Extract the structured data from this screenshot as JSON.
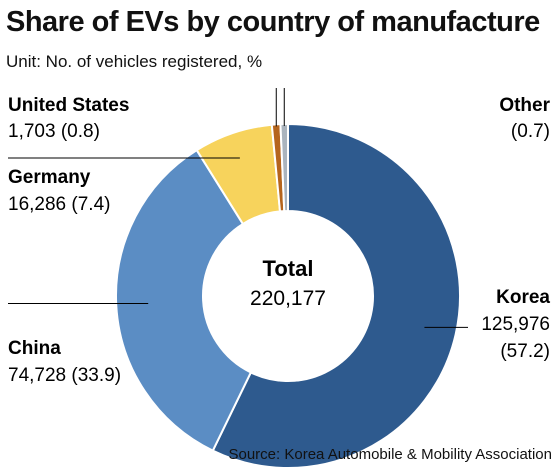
{
  "header": {
    "title": "Share of EVs by country of manufacture",
    "unit": "Unit: No. of vehicles registered, %"
  },
  "source": "Source: Korea Automobile & Mobility Association",
  "center": {
    "label": "Total",
    "value": "220,177"
  },
  "chart_data": {
    "type": "pie",
    "title": "Share of EVs by country of manufacture",
    "total": 220177,
    "slices": [
      {
        "name": "Korea",
        "value": 125976,
        "percent": 57.2,
        "value_text": "125,976",
        "pct_text": "(57.2)",
        "color": "#2e5a8e"
      },
      {
        "name": "China",
        "value": 74728,
        "percent": 33.9,
        "value_text": "74,728 (33.9)",
        "color": "#5b8dc4"
      },
      {
        "name": "Germany",
        "value": 16286,
        "percent": 7.4,
        "value_text": "16,286 (7.4)",
        "color": "#f7d35c"
      },
      {
        "name": "United States",
        "value": 1703,
        "percent": 0.8,
        "value_text": "1,703 (0.8)",
        "color": "#b5651d"
      },
      {
        "name": "Other",
        "value": null,
        "percent": 0.7,
        "value_text": "(0.7)",
        "color": "#aab4be"
      }
    ]
  }
}
